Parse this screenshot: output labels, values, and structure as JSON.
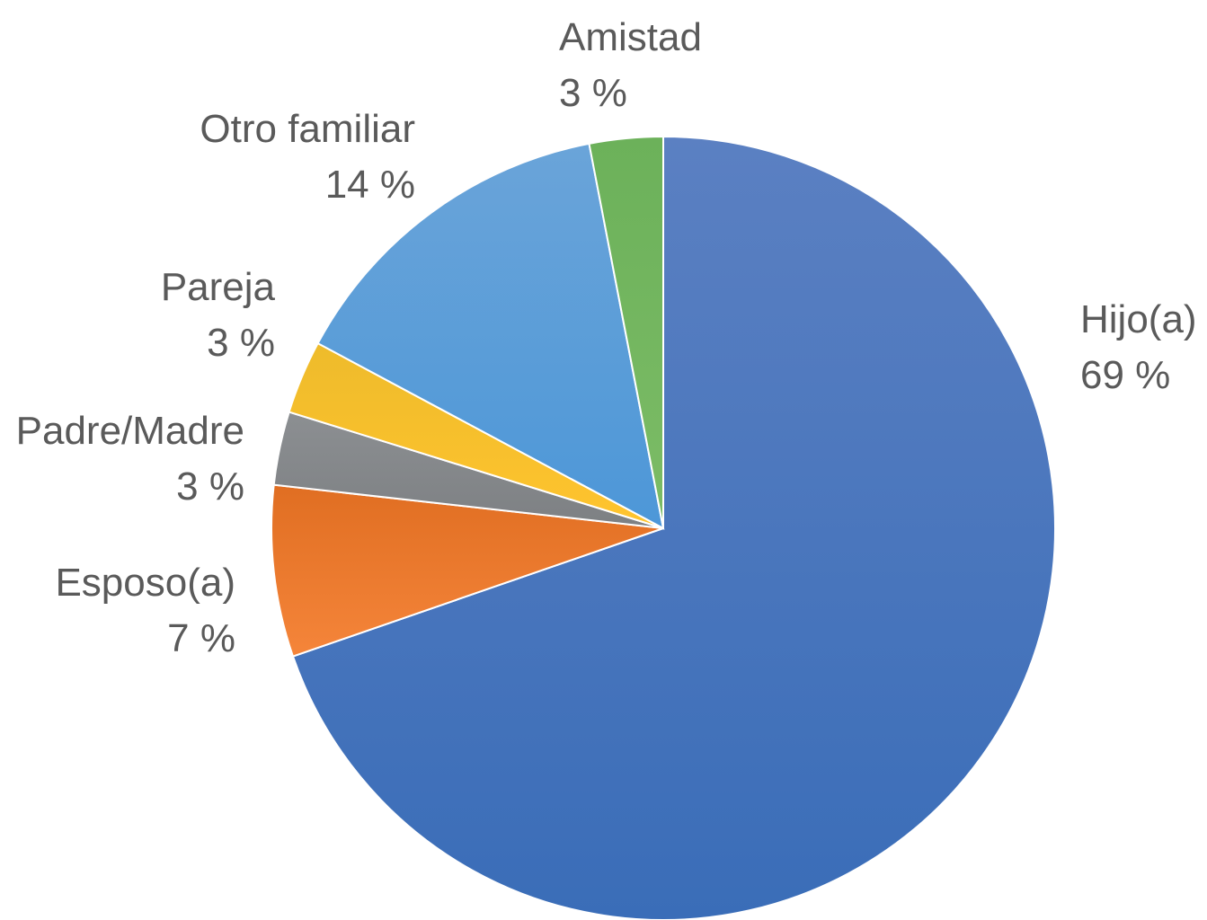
{
  "chart_data": {
    "type": "pie",
    "title": "",
    "start_angle_deg": 0,
    "direction": "clockwise",
    "slices": [
      {
        "label": "Hijo(a)",
        "value": 69,
        "value_label": "69 %",
        "color": "#4472c4"
      },
      {
        "label": "Esposo(a)",
        "value": 7,
        "value_label": "7 %",
        "color": "#ed7d31"
      },
      {
        "label": "Padre/Madre",
        "value": 3,
        "value_label": "3 %",
        "color": "#8c8f92"
      },
      {
        "label": "Pareja",
        "value": 3,
        "value_label": "3 %",
        "color": "#fdbf2d"
      },
      {
        "label": "Otro familiar",
        "value": 14,
        "value_label": "14 %",
        "color": "#5b9bd5"
      },
      {
        "label": "Amistad",
        "value": 3,
        "value_label": "3 %",
        "color": "#70ad47"
      }
    ]
  }
}
